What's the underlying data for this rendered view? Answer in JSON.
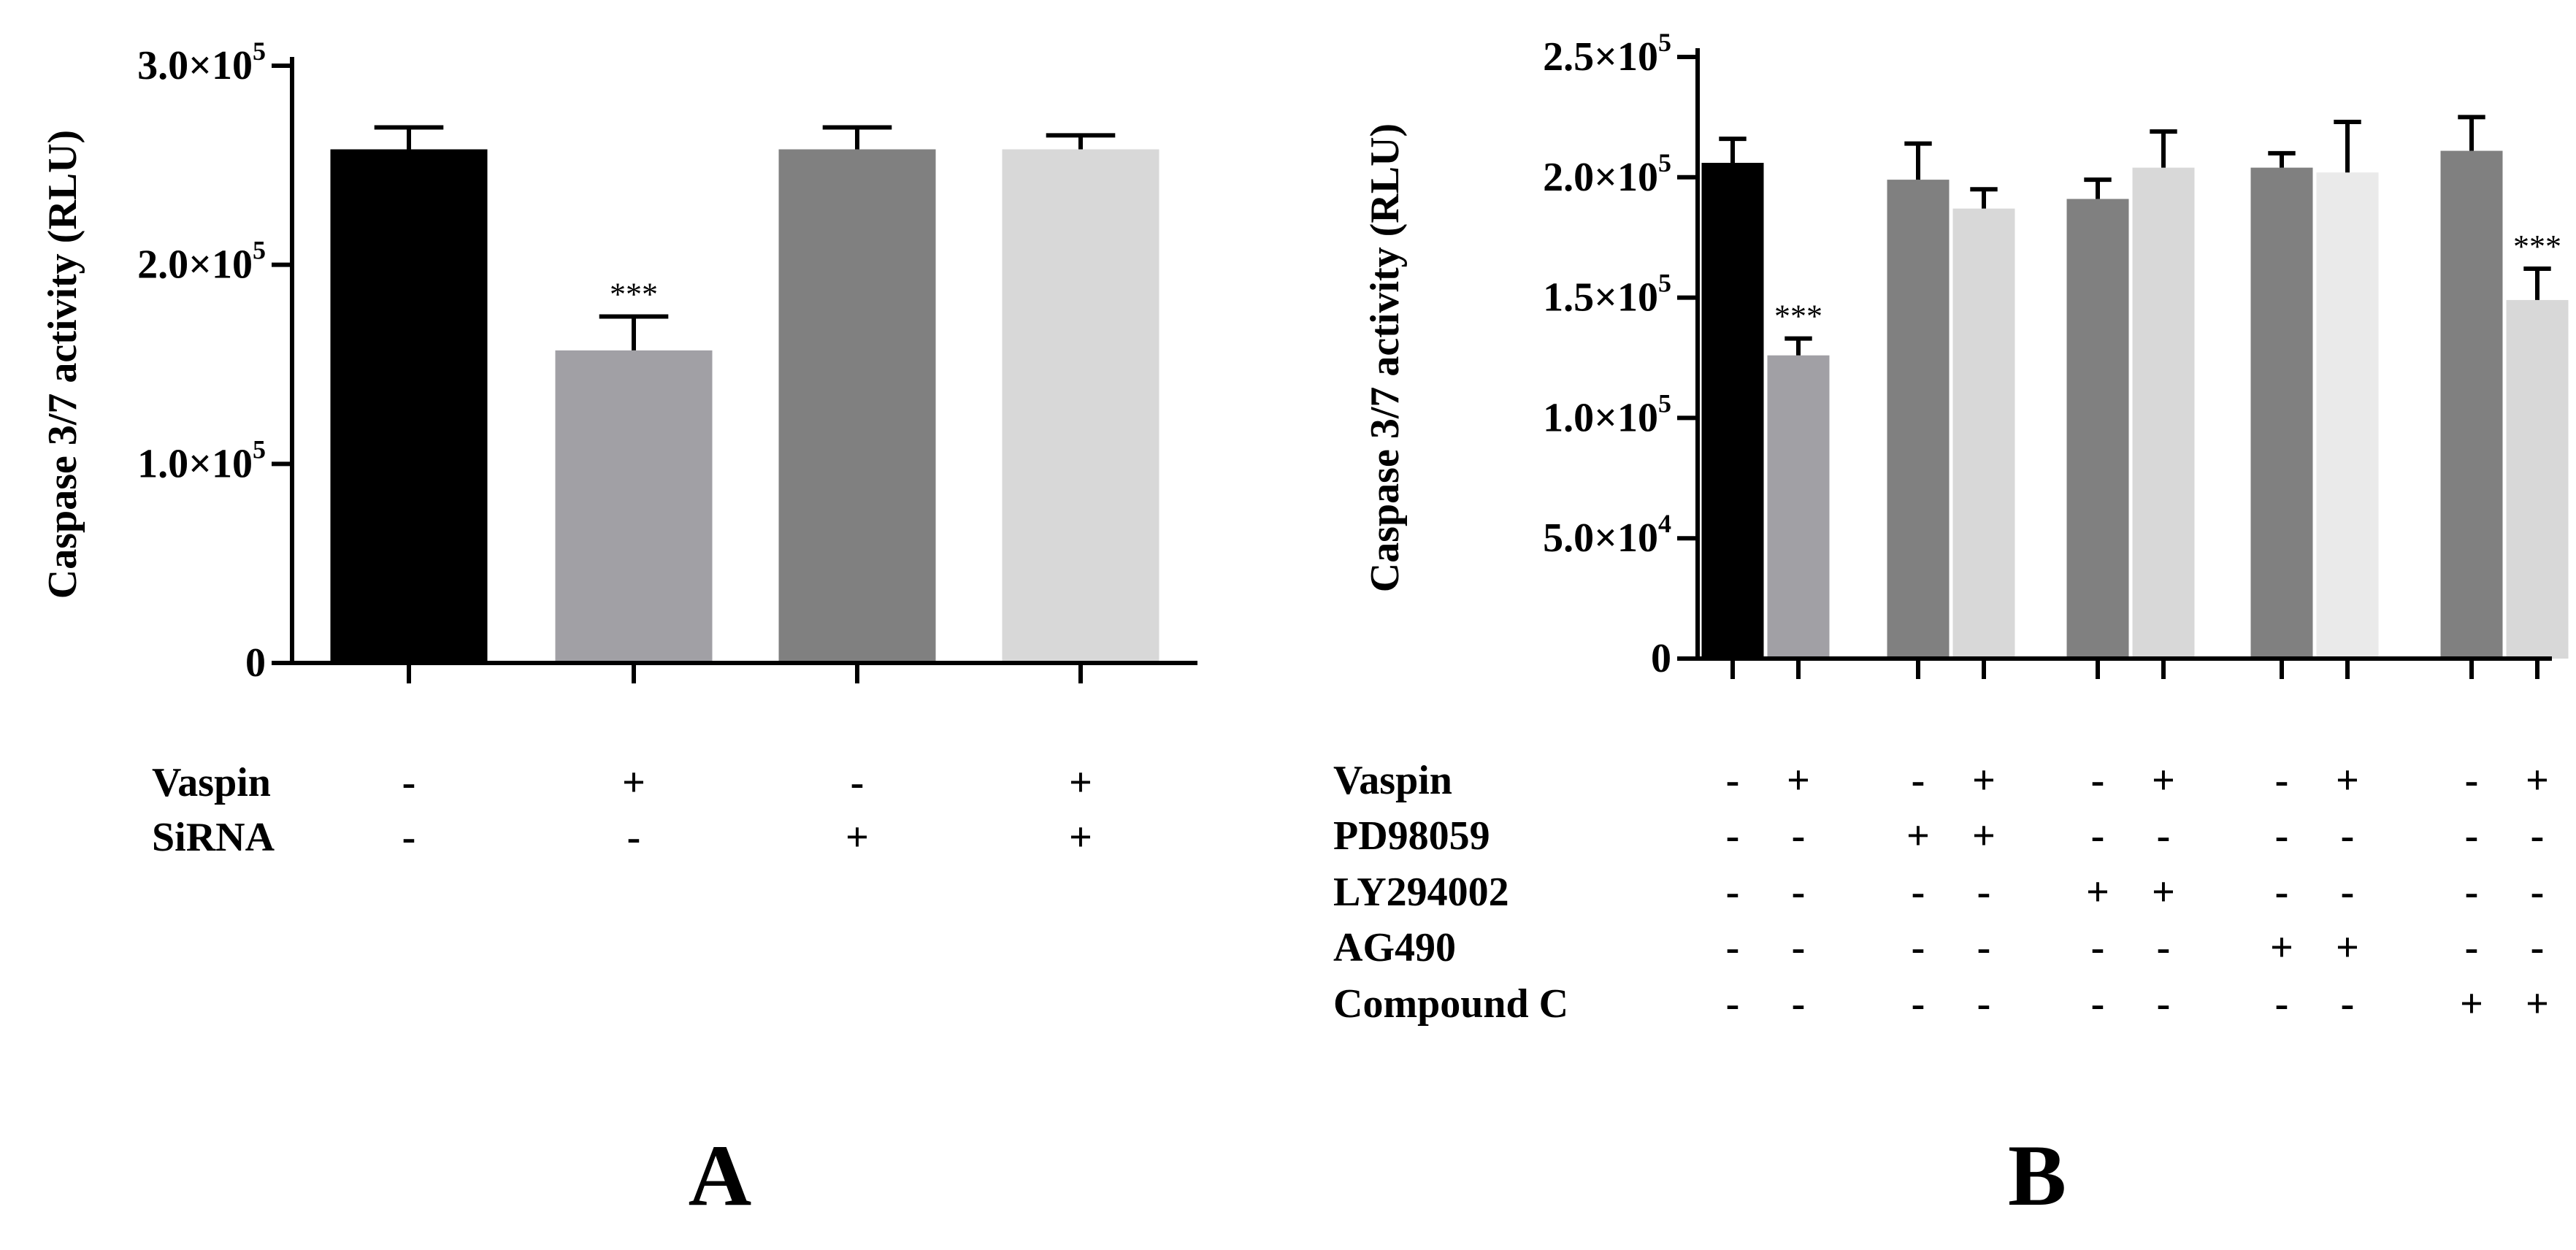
{
  "chart_data": [
    {
      "type": "bar",
      "panel": "A",
      "ylabel": "Caspase 3/7 activity (RLU)",
      "ylim": [
        0,
        300000
      ],
      "y_ticks": [
        {
          "value": 0,
          "mantissa": "0",
          "exponent": ""
        },
        {
          "value": 100000,
          "mantissa": "1.0×10",
          "exponent": "5"
        },
        {
          "value": 200000,
          "mantissa": "2.0×10",
          "exponent": "5"
        },
        {
          "value": 300000,
          "mantissa": "3.0×10",
          "exponent": "5"
        }
      ],
      "values": [
        258000,
        157000,
        258000,
        258000
      ],
      "errors": [
        11000,
        17000,
        11000,
        7000
      ],
      "colors": [
        "#000000",
        "#a1a0a5",
        "#808080",
        "#d8d8d8"
      ],
      "significance": [
        "",
        "***",
        "",
        ""
      ],
      "conditions": [
        {
          "label": "Vaspin",
          "signs": [
            "-",
            "+",
            "-",
            "+"
          ]
        },
        {
          "label": "SiRNA",
          "signs": [
            "-",
            "-",
            "+",
            "+"
          ]
        }
      ]
    },
    {
      "type": "bar",
      "panel": "B",
      "ylabel": "Caspase 3/7 activity (RLU)",
      "ylim": [
        0,
        250000
      ],
      "y_ticks": [
        {
          "value": 0,
          "mantissa": "0",
          "exponent": ""
        },
        {
          "value": 50000,
          "mantissa": "5.0×10",
          "exponent": "4"
        },
        {
          "value": 100000,
          "mantissa": "1.0×10",
          "exponent": "5"
        },
        {
          "value": 150000,
          "mantissa": "1.5×10",
          "exponent": "5"
        },
        {
          "value": 200000,
          "mantissa": "2.0×10",
          "exponent": "5"
        },
        {
          "value": 250000,
          "mantissa": "2.5×10",
          "exponent": "5"
        }
      ],
      "values": [
        206000,
        126000,
        199000,
        187000,
        191000,
        204000,
        204000,
        202000,
        211000,
        149000
      ],
      "errors": [
        10000,
        7000,
        15000,
        8000,
        8000,
        15000,
        6000,
        21000,
        14000,
        13000
      ],
      "colors": [
        "#000000",
        "#a1a0a5",
        "#808080",
        "#d8d8d8",
        "#808080",
        "#d8d8d8",
        "#808080",
        "#eaeaea",
        "#808080",
        "#d8d8d8"
      ],
      "significance": [
        "",
        "***",
        "",
        "",
        "",
        "",
        "",
        "",
        "",
        "***"
      ],
      "conditions": [
        {
          "label": "Vaspin",
          "signs": [
            "-",
            "+",
            "-",
            "+",
            "-",
            "+",
            "-",
            "+",
            "-",
            "+"
          ]
        },
        {
          "label": "PD98059",
          "signs": [
            "-",
            "-",
            "+",
            "+",
            "-",
            "-",
            "-",
            "-",
            "-",
            "-"
          ]
        },
        {
          "label": "LY294002",
          "signs": [
            "-",
            "-",
            "-",
            "-",
            "+",
            "+",
            "-",
            "-",
            "-",
            "-"
          ]
        },
        {
          "label": "AG490",
          "signs": [
            "-",
            "-",
            "-",
            "-",
            "-",
            "-",
            "+",
            "+",
            "-",
            "-"
          ]
        },
        {
          "label": "Compound C",
          "signs": [
            "-",
            "-",
            "-",
            "-",
            "-",
            "-",
            "-",
            "-",
            "+",
            "+"
          ]
        }
      ]
    }
  ]
}
